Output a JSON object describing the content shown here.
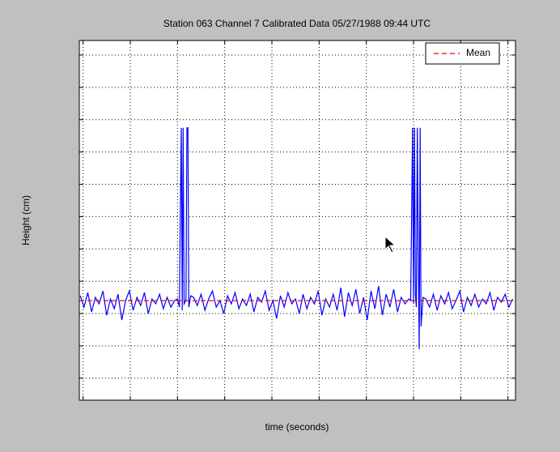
{
  "chart_data": {
    "type": "line",
    "title": "Station 063 Channel 7 Calibrated Data  05/27/1988 09:44 UTC",
    "x_label": "time (seconds)",
    "y_label": "Height (cm)",
    "xlim": [
      946,
      1408
    ],
    "ylim": [
      1132,
      2245
    ],
    "xticks": [
      950,
      1000,
      1050,
      1100,
      1150,
      1200,
      1250,
      1300,
      1350,
      1400
    ],
    "yticks": [
      1200,
      1300,
      1400,
      1500,
      1600,
      1700,
      1800,
      1900,
      2000,
      2100,
      2200
    ],
    "grid": true,
    "legend": "upper right",
    "series": [
      {
        "color": "#0000ff",
        "dashed": false,
        "x": [
          947,
          951,
          955,
          959,
          963,
          967,
          971,
          975,
          979,
          983,
          987,
          991,
          995,
          999,
          1003,
          1007,
          1011,
          1015,
          1019,
          1023,
          1027,
          1031,
          1035,
          1039,
          1043,
          1047,
          1050,
          1052,
          1053,
          1054,
          1055,
          1056,
          1057,
          1059,
          1060,
          1061,
          1062,
          1064,
          1067,
          1071,
          1075,
          1079,
          1083,
          1087,
          1091,
          1095,
          1099,
          1103,
          1107,
          1111,
          1115,
          1119,
          1123,
          1127,
          1131,
          1135,
          1139,
          1143,
          1147,
          1151,
          1155,
          1159,
          1163,
          1167,
          1171,
          1175,
          1179,
          1183,
          1187,
          1191,
          1195,
          1199,
          1203,
          1207,
          1211,
          1215,
          1219,
          1223,
          1227,
          1231,
          1235,
          1239,
          1243,
          1247,
          1251,
          1255,
          1259,
          1263,
          1267,
          1271,
          1275,
          1279,
          1283,
          1287,
          1291,
          1295,
          1297,
          1298,
          1299,
          1300,
          1301,
          1302,
          1303,
          1304,
          1305,
          1306,
          1307,
          1308,
          1310,
          1313,
          1317,
          1321,
          1325,
          1329,
          1333,
          1337,
          1341,
          1345,
          1349,
          1353,
          1357,
          1361,
          1365,
          1369,
          1373,
          1377,
          1381,
          1385,
          1389,
          1393,
          1397,
          1401,
          1405
        ],
        "values": [
          1455,
          1420,
          1465,
          1405,
          1450,
          1430,
          1470,
          1395,
          1445,
          1415,
          1460,
          1380,
          1440,
          1470,
          1410,
          1450,
          1425,
          1465,
          1400,
          1445,
          1430,
          1460,
          1415,
          1450,
          1420,
          1440,
          1445,
          1420,
          1710,
          1975,
          1410,
          1975,
          1430,
          1440,
          1975,
          1975,
          1420,
          1455,
          1450,
          1425,
          1460,
          1410,
          1445,
          1470,
          1420,
          1440,
          1400,
          1455,
          1430,
          1465,
          1415,
          1445,
          1425,
          1460,
          1405,
          1450,
          1435,
          1470,
          1410,
          1440,
          1385,
          1455,
          1420,
          1465,
          1430,
          1445,
          1400,
          1460,
          1415,
          1450,
          1430,
          1470,
          1395,
          1445,
          1420,
          1460,
          1410,
          1480,
          1390,
          1465,
          1425,
          1475,
          1400,
          1450,
          1380,
          1470,
          1415,
          1485,
          1395,
          1460,
          1420,
          1475,
          1405,
          1450,
          1430,
          1445,
          1440,
          1710,
          1975,
          1430,
          1975,
          1460,
          1420,
          1975,
          1600,
          1290,
          1975,
          1360,
          1450,
          1445,
          1420,
          1460,
          1410,
          1455,
          1430,
          1465,
          1415,
          1440,
          1470,
          1405,
          1450,
          1425,
          1460,
          1420,
          1445,
          1430,
          1465,
          1410,
          1450,
          1435,
          1460,
          1420,
          1445
        ]
      },
      {
        "name": "Mean",
        "color": "#ff0000",
        "dashed": true,
        "x": [
          946,
          1408
        ],
        "values": [
          1440,
          1440
        ]
      }
    ]
  }
}
